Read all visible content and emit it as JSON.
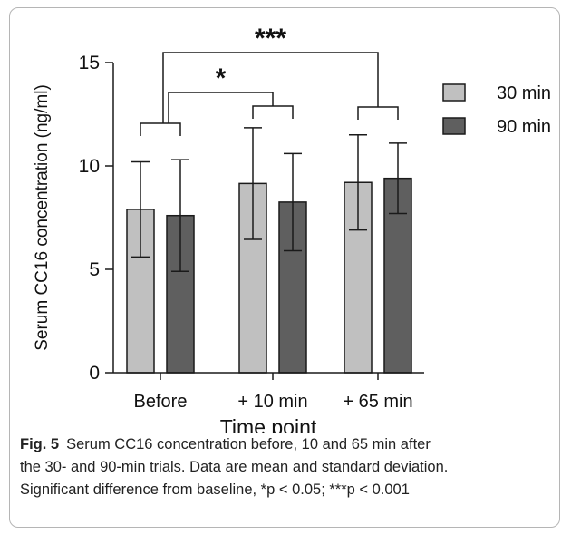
{
  "chart_data": {
    "type": "bar",
    "categories": [
      "Before",
      "+ 10 min",
      "+ 65 min"
    ],
    "series": [
      {
        "name": "30 min",
        "color": "#c0c0c0",
        "values": [
          7.9,
          9.15,
          9.2
        ],
        "sd": [
          2.3,
          2.7,
          2.3
        ]
      },
      {
        "name": "90 min",
        "color": "#5f5f5f",
        "values": [
          7.6,
          8.25,
          9.4
        ],
        "sd": [
          2.7,
          2.35,
          1.7
        ]
      }
    ],
    "xlabel": "Time point",
    "ylabel": "Serum CC16 concentration (ng/ml)",
    "ylim": [
      0,
      15
    ],
    "yticks": [
      0,
      5,
      10,
      15
    ],
    "grid": false,
    "legend_position": "top-right",
    "significance": [
      {
        "from": "Before",
        "to": "+ 10 min",
        "label": "*"
      },
      {
        "from": "Before",
        "to": "+ 65 min",
        "label": "***"
      }
    ]
  },
  "caption": {
    "label": "Fig. 5",
    "lines": [
      "Serum CC16 concentration before, 10 and 65 min after",
      "the 30- and 90-min trials. Data are mean and standard deviation.",
      "Significant difference from baseline, *p < 0.05; ***p < 0.001"
    ]
  }
}
